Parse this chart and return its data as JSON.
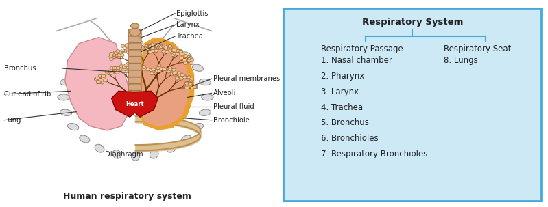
{
  "title_left": "Human respiratory system",
  "title_right": "Respiratory System",
  "box_bg": "#cce9f5",
  "box_border": "#44aadd",
  "right_col1_header": "Respiratory Passage",
  "right_col2_header": "Respiratory Seat",
  "right_col1_items": [
    "1. Nasal chamber",
    "2. Pharynx",
    "3. Larynx",
    "4. Trachea",
    "5. Bronchus",
    "6. Bronchioles",
    "7. Respiratory Bronchioles"
  ],
  "right_col2_items": [
    "8. Lungs"
  ],
  "line_color": "#333333",
  "text_color": "#333333",
  "bg_color": "#ffffff",
  "lung_left_fc": "#f5b8c0",
  "lung_left_ec": "#cc8888",
  "lung_right_outer_fc": "#e8a030",
  "lung_right_inner_fc": "#e8a080",
  "lung_right_ec": "#cc8844",
  "trachea_fc": "#d4a882",
  "trachea_ec": "#aa7744",
  "heart_fc": "#cc1111",
  "heart_ec": "#880000",
  "diaphragm_fc": "#ddc090",
  "diaphragm_ec": "#bb9055",
  "rib_fc": "#dddddd",
  "rib_ec": "#888888",
  "neck_color": "#ccbbaa",
  "epi_fc": "#d4a882",
  "epi_ec": "#aa7744"
}
